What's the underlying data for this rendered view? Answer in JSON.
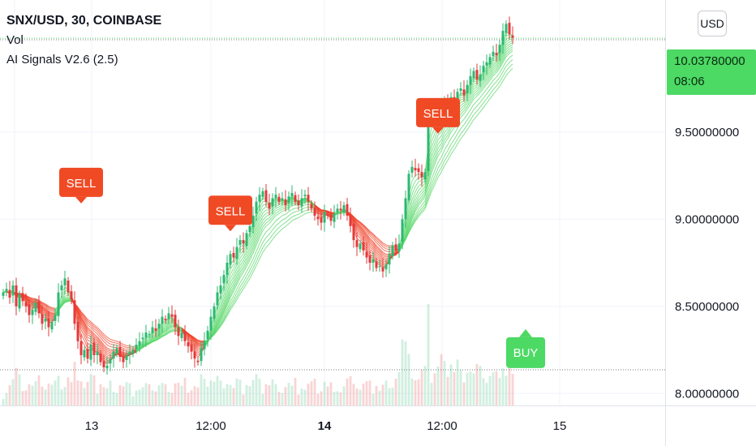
{
  "legend": {
    "symbol": "SNX/USD, 30, COINBASE",
    "volume": "Vol",
    "indicator": "AI Signals V2.6 (2.5)"
  },
  "currency_button": "USD",
  "last_price": {
    "value": "10.03780000",
    "countdown": "08:06"
  },
  "colors": {
    "up": "#26a69a",
    "down": "#ef5350",
    "candle_up": "#2eb872",
    "candle_down": "#e5393a",
    "ribbon_bull": "#5ad86a",
    "ribbon_bear": "#f0442a",
    "sell_signal": "#f04a25",
    "buy_signal": "#4cd964",
    "last_price": "#4cd964"
  },
  "chart_data": {
    "type": "candlestick",
    "title": "SNX/USD, 30, COINBASE",
    "y_axis": {
      "range": [
        7.9,
        10.3
      ],
      "tick_labels": [
        "10.03780000",
        "9.50000000",
        "9.00000000",
        "8.50000000",
        "8.00000000"
      ],
      "tick_values": [
        10.0378,
        9.5,
        9.0,
        8.5,
        8.0
      ]
    },
    "x_axis": {
      "tick_labels": [
        "13",
        "12:00",
        "14",
        "12:00",
        "15"
      ],
      "bold_labels": [
        "14"
      ]
    },
    "signals": [
      {
        "label": "SELL",
        "type": "sell",
        "bar": 24,
        "price": 9.09
      },
      {
        "label": "SELL",
        "type": "sell",
        "bar": 70,
        "price": 8.93
      },
      {
        "label": "SELL",
        "type": "sell",
        "bar": 134,
        "price": 9.49
      },
      {
        "label": "BUY",
        "type": "buy",
        "bar": 161,
        "price": 8.36
      }
    ],
    "close_prices": [
      8.58,
      8.6,
      8.55,
      8.62,
      8.5,
      8.57,
      8.53,
      8.5,
      8.45,
      8.48,
      8.52,
      8.46,
      8.4,
      8.43,
      8.38,
      8.41,
      8.45,
      8.58,
      8.62,
      8.66,
      8.58,
      8.54,
      8.4,
      8.3,
      8.22,
      8.25,
      8.2,
      8.28,
      8.22,
      8.24,
      8.18,
      8.15,
      8.16,
      8.2,
      8.24,
      8.26,
      8.21,
      8.18,
      8.22,
      8.24,
      8.25,
      8.28,
      8.3,
      8.32,
      8.35,
      8.34,
      8.38,
      8.36,
      8.4,
      8.44,
      8.42,
      8.46,
      8.44,
      8.38,
      8.33,
      8.35,
      8.3,
      8.27,
      8.24,
      8.2,
      8.18,
      8.26,
      8.3,
      8.36,
      8.44,
      8.5,
      8.58,
      8.62,
      8.68,
      8.75,
      8.8,
      8.78,
      8.84,
      8.88,
      8.86,
      8.92,
      8.96,
      9.02,
      9.1,
      9.14,
      9.16,
      9.1,
      9.06,
      9.12,
      9.14,
      9.1,
      9.12,
      9.08,
      9.13,
      9.15,
      9.1,
      9.08,
      9.12,
      9.14,
      9.1,
      9.06,
      9.02,
      9.0,
      8.98,
      9.04,
      9.02,
      8.99,
      9.03,
      9.06,
      9.05,
      9.08,
      9.02,
      8.96,
      8.88,
      8.84,
      8.86,
      8.82,
      8.78,
      8.75,
      8.77,
      8.72,
      8.73,
      8.7,
      8.74,
      8.8,
      8.85,
      8.82,
      8.86,
      9.0,
      9.12,
      9.26,
      9.3,
      9.28,
      9.27,
      9.24,
      9.27,
      9.6,
      9.62,
      9.58,
      9.63,
      9.55,
      9.67,
      9.62,
      9.7,
      9.66,
      9.73,
      9.75,
      9.71,
      9.77,
      9.82,
      9.85,
      9.8,
      9.83,
      9.88,
      9.9,
      9.93,
      9.96,
      9.94,
      10.0,
      10.08,
      10.12,
      10.06,
      10.04
    ]
  }
}
